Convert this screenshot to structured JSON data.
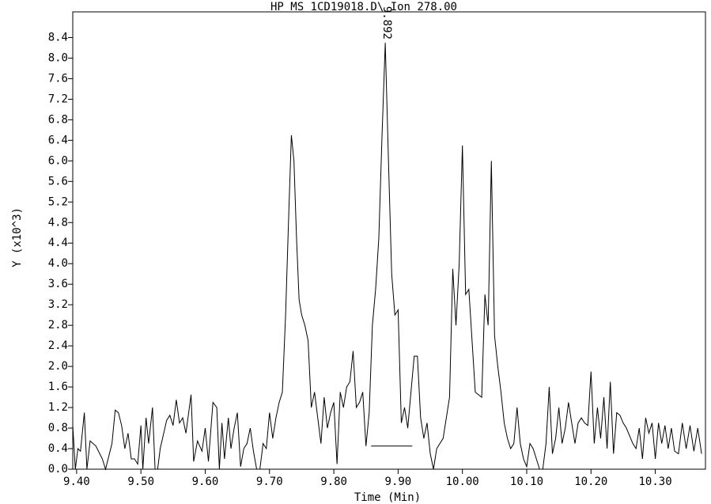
{
  "chart_data": {
    "type": "line",
    "title": "HP MS 1CD19018.D\\ Ion 278.00",
    "x_label": "Time (Min)",
    "y_label": "Y (x10^3)",
    "color": "#000000",
    "x": [
      9.394,
      9.398,
      9.402,
      9.406,
      9.412,
      9.416,
      9.421,
      9.43,
      9.44,
      9.445,
      9.455,
      9.46,
      9.465,
      9.47,
      9.475,
      9.48,
      9.485,
      9.49,
      9.495,
      9.5,
      9.503,
      9.508,
      9.512,
      9.518,
      9.522,
      9.526,
      9.53,
      9.54,
      9.545,
      9.55,
      9.555,
      9.56,
      9.565,
      9.57,
      9.578,
      9.582,
      9.588,
      9.595,
      9.6,
      9.605,
      9.612,
      9.618,
      9.622,
      9.626,
      9.63,
      9.636,
      9.64,
      9.645,
      9.65,
      9.655,
      9.66,
      9.665,
      9.67,
      9.675,
      9.68,
      9.685,
      9.69,
      9.695,
      9.7,
      9.705,
      9.71,
      9.715,
      9.72,
      9.725,
      9.73,
      9.734,
      9.738,
      9.742,
      9.746,
      9.75,
      9.755,
      9.76,
      9.765,
      9.77,
      9.775,
      9.78,
      9.785,
      9.79,
      9.795,
      9.8,
      9.805,
      9.81,
      9.815,
      9.82,
      9.825,
      9.83,
      9.835,
      9.84,
      9.845,
      9.85,
      9.855,
      9.86,
      9.865,
      9.87,
      9.875,
      9.88,
      9.885,
      9.89,
      9.895,
      9.9,
      9.905,
      9.91,
      9.915,
      9.92,
      9.925,
      9.93,
      9.935,
      9.94,
      9.945,
      9.95,
      9.955,
      9.96,
      9.965,
      9.97,
      9.98,
      9.985,
      9.99,
      9.995,
      10.0,
      10.005,
      10.01,
      10.015,
      10.02,
      10.03,
      10.035,
      10.04,
      10.045,
      10.05,
      10.055,
      10.06,
      10.065,
      10.07,
      10.075,
      10.08,
      10.085,
      10.09,
      10.095,
      10.1,
      10.105,
      10.11,
      10.115,
      10.12,
      10.125,
      10.13,
      10.135,
      10.14,
      10.145,
      10.15,
      10.155,
      10.16,
      10.165,
      10.17,
      10.175,
      10.18,
      10.185,
      10.19,
      10.195,
      10.2,
      10.205,
      10.21,
      10.215,
      10.22,
      10.225,
      10.23,
      10.235,
      10.24,
      10.245,
      10.25,
      10.255,
      10.26,
      10.265,
      10.27,
      10.275,
      10.28,
      10.285,
      10.29,
      10.295,
      10.3,
      10.305,
      10.31,
      10.315,
      10.32,
      10.325,
      10.33,
      10.336,
      10.342,
      10.348,
      10.354,
      10.36,
      10.366,
      10.372
    ],
    "values": [
      0.85,
      0.0,
      0.4,
      0.35,
      1.1,
      0.0,
      0.55,
      0.45,
      0.2,
      0.0,
      0.5,
      1.15,
      1.1,
      0.85,
      0.4,
      0.7,
      0.2,
      0.2,
      0.1,
      0.85,
      0.0,
      1.0,
      0.5,
      1.2,
      0.0,
      0.0,
      0.4,
      0.95,
      1.05,
      0.85,
      1.35,
      0.9,
      1.0,
      0.7,
      1.45,
      0.15,
      0.55,
      0.35,
      0.8,
      0.15,
      1.3,
      1.2,
      0.0,
      0.9,
      0.2,
      1.0,
      0.4,
      0.8,
      1.1,
      0.05,
      0.4,
      0.5,
      0.8,
      0.35,
      0.0,
      0.0,
      0.5,
      0.4,
      1.1,
      0.6,
      1.0,
      1.3,
      1.5,
      3.0,
      5.0,
      6.5,
      6.0,
      4.5,
      3.3,
      3.0,
      2.8,
      2.5,
      1.2,
      1.5,
      1.0,
      0.5,
      1.4,
      0.8,
      1.1,
      1.3,
      0.1,
      1.5,
      1.2,
      1.6,
      1.7,
      2.3,
      1.2,
      1.3,
      1.5,
      0.45,
      1.1,
      2.8,
      3.5,
      4.5,
      6.5,
      8.3,
      6.0,
      3.8,
      3.0,
      3.1,
      0.9,
      1.2,
      0.8,
      1.5,
      2.2,
      2.2,
      1.0,
      0.6,
      0.9,
      0.3,
      0.0,
      0.4,
      0.5,
      0.6,
      1.4,
      3.9,
      2.8,
      4.0,
      6.3,
      3.4,
      3.5,
      2.5,
      1.5,
      1.4,
      3.4,
      2.8,
      6.0,
      2.6,
      2.0,
      1.5,
      0.9,
      0.6,
      0.4,
      0.5,
      1.2,
      0.5,
      0.2,
      0.05,
      0.5,
      0.4,
      0.2,
      0.0,
      0.0,
      0.5,
      1.6,
      0.3,
      0.6,
      1.2,
      0.5,
      0.8,
      1.3,
      0.9,
      0.5,
      0.9,
      1.0,
      0.9,
      0.85,
      1.9,
      0.5,
      1.2,
      0.6,
      1.4,
      0.4,
      1.7,
      0.3,
      1.1,
      1.05,
      0.9,
      0.8,
      0.65,
      0.5,
      0.4,
      0.8,
      0.2,
      1.0,
      0.7,
      0.9,
      0.2,
      0.9,
      0.5,
      0.85,
      0.4,
      0.8,
      0.35,
      0.3,
      0.9,
      0.4,
      0.85,
      0.35,
      0.8,
      0.3
    ],
    "peak_label": "9.892",
    "baseline": {
      "x": [
        9.858,
        9.922
      ],
      "y": 0.45
    },
    "xlim": [
      9.394,
      10.378
    ],
    "ylim": [
      0,
      8.9
    ],
    "xticks": [
      {
        "value": 9.4,
        "label": "9.40"
      },
      {
        "value": 9.5,
        "label": "9.50"
      },
      {
        "value": 9.6,
        "label": "9.60"
      },
      {
        "value": 9.7,
        "label": "9.70"
      },
      {
        "value": 9.8,
        "label": "9.80"
      },
      {
        "value": 9.9,
        "label": "9.90"
      },
      {
        "value": 10.0,
        "label": "10.00"
      },
      {
        "value": 10.1,
        "label": "10.10"
      },
      {
        "value": 10.2,
        "label": "10.20"
      },
      {
        "value": 10.3,
        "label": "10.30"
      }
    ],
    "yticks": [
      {
        "value": 0,
        "label": "0.0"
      },
      0.4,
      0.8,
      1.2,
      1.6,
      {
        "value": 2,
        "label": "2.0"
      },
      2.4,
      2.8,
      3.2,
      3.6,
      {
        "value": 4,
        "label": "4.0"
      },
      4.4,
      4.8,
      5.2,
      5.6,
      {
        "value": 6,
        "label": "6.0"
      },
      6.4,
      6.8,
      7.2,
      7.6,
      {
        "value": 8,
        "label": "8.0"
      },
      8.4
    ]
  }
}
